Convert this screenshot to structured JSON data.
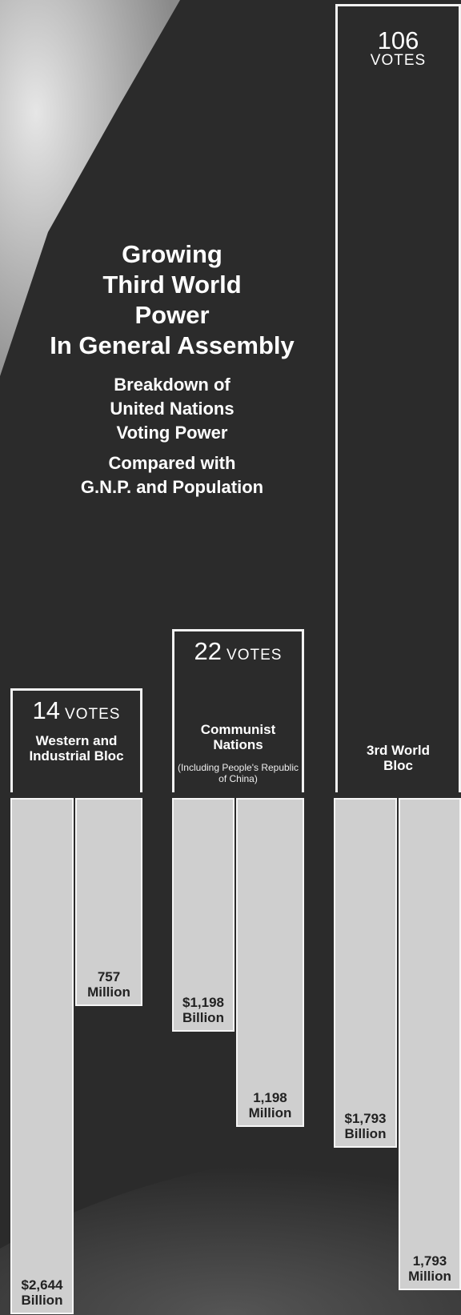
{
  "chart_data": {
    "type": "bloc-bars",
    "title": [
      "Growing",
      "Third World",
      "Power",
      "In General Assembly"
    ],
    "subtitle": [
      "Breakdown of",
      "United Nations",
      "Voting Power"
    ],
    "subtitle2": [
      "Compared with",
      "G.N.P. and Population"
    ],
    "vote_unit": "VOTES",
    "categories": [
      "Western and Industrial Bloc",
      "Communist Nations",
      "3rd World Bloc"
    ],
    "category_notes": [
      null,
      "(Including People's Republic of China)",
      null
    ],
    "votes": [
      14,
      22,
      106
    ],
    "gnp": {
      "values": [
        2644,
        1198,
        1793
      ],
      "value_labels": [
        "$2,644 Billion",
        "$1,198 Billion",
        "$1,793 Billion"
      ]
    },
    "population": {
      "values": [
        757,
        1198,
        1793
      ],
      "value_labels": [
        "757 Million",
        "1,198 Million",
        "1,793 Million"
      ]
    }
  }
}
